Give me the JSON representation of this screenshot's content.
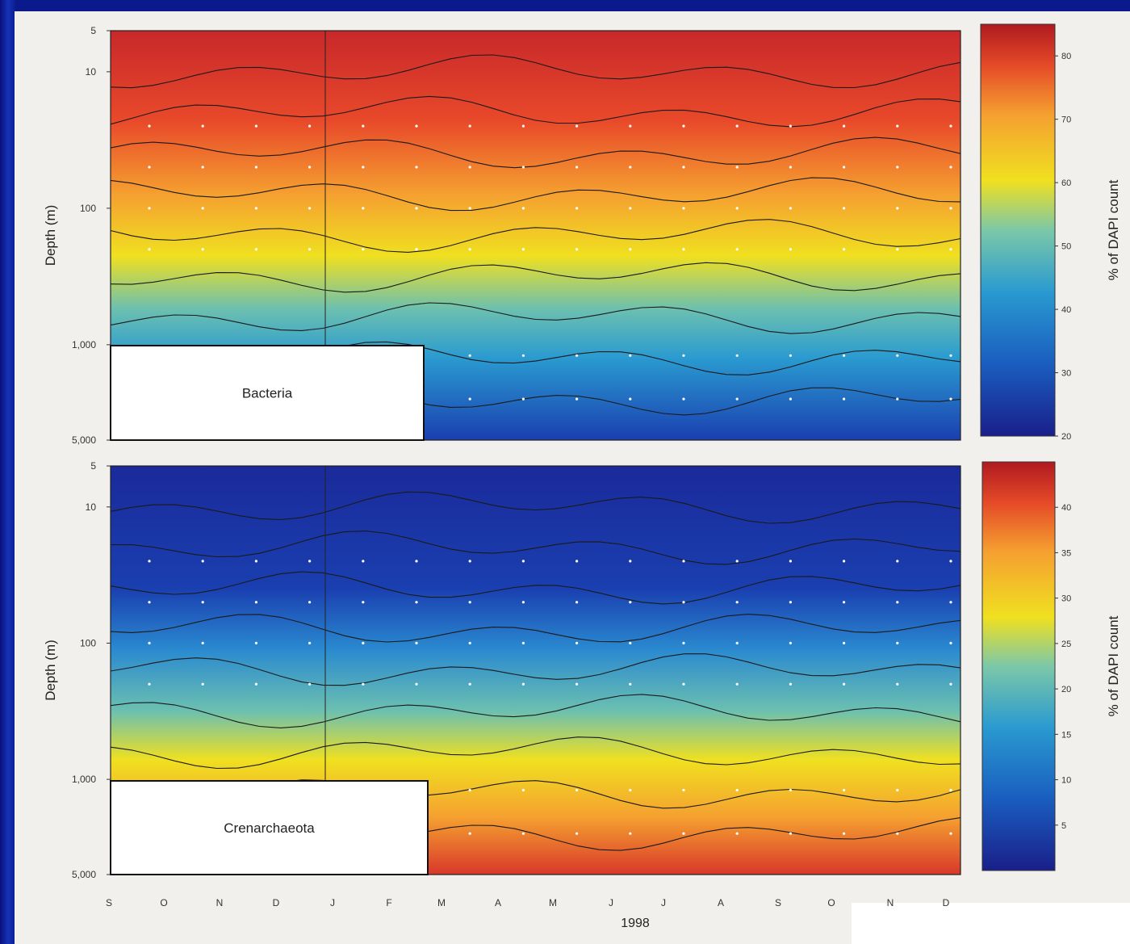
{
  "chart_data": [
    {
      "type": "heatmap",
      "panel_label": "Bacteria",
      "ylabel": "Depth (m)",
      "y_scale": "log",
      "y_ticks": [
        "5",
        "10",
        "100",
        "1,000",
        "5,000"
      ],
      "y_tick_values": [
        5,
        10,
        100,
        1000,
        5000
      ],
      "x_ticks": [
        "S",
        "O",
        "N",
        "D",
        "J",
        "F",
        "M",
        "A",
        "M",
        "J",
        "J",
        "A",
        "S",
        "O",
        "N",
        "D"
      ],
      "colorbar": {
        "label": "% of DAPI count",
        "range": [
          20,
          85
        ],
        "ticks": [
          "20",
          "30",
          "40",
          "50",
          "60",
          "70",
          "80"
        ]
      },
      "contour_lines": true,
      "colors": [
        "#1a1f8a",
        "#1a5fc0",
        "#2a9ad0",
        "#6cc0b0",
        "#f0e020",
        "#f5a030",
        "#e54a28",
        "#b01a20"
      ],
      "depth_profile_mean_percent": [
        {
          "depth": 5,
          "value": 78
        },
        {
          "depth": 30,
          "value": 75
        },
        {
          "depth": 100,
          "value": 65
        },
        {
          "depth": 300,
          "value": 50
        },
        {
          "depth": 1000,
          "value": 38
        },
        {
          "depth": 5000,
          "value": 30
        }
      ]
    },
    {
      "type": "heatmap",
      "panel_label": "Crenarchaeota",
      "ylabel": "Depth (m)",
      "y_scale": "log",
      "y_ticks": [
        "5",
        "10",
        "100",
        "1,000",
        "5,000"
      ],
      "y_tick_values": [
        5,
        10,
        100,
        1000,
        5000
      ],
      "x_ticks": [
        "S",
        "O",
        "N",
        "D",
        "J",
        "F",
        "M",
        "A",
        "M",
        "J",
        "J",
        "A",
        "S",
        "O",
        "N",
        "D"
      ],
      "colorbar": {
        "label": "% of DAPI count",
        "range": [
          0,
          45
        ],
        "ticks": [
          "5",
          "10",
          "15",
          "20",
          "25",
          "30",
          "35",
          "40"
        ]
      },
      "contour_lines": true,
      "colors": [
        "#1a1f8a",
        "#1a5fc0",
        "#2a9ad0",
        "#6cc0b0",
        "#f0e020",
        "#f5a030",
        "#e54a28",
        "#b01a20"
      ],
      "depth_profile_mean_percent": [
        {
          "depth": 5,
          "value": 3
        },
        {
          "depth": 30,
          "value": 5
        },
        {
          "depth": 100,
          "value": 12
        },
        {
          "depth": 300,
          "value": 25
        },
        {
          "depth": 1000,
          "value": 30
        },
        {
          "depth": 5000,
          "value": 35
        }
      ]
    }
  ],
  "x_axis_year": "1998"
}
